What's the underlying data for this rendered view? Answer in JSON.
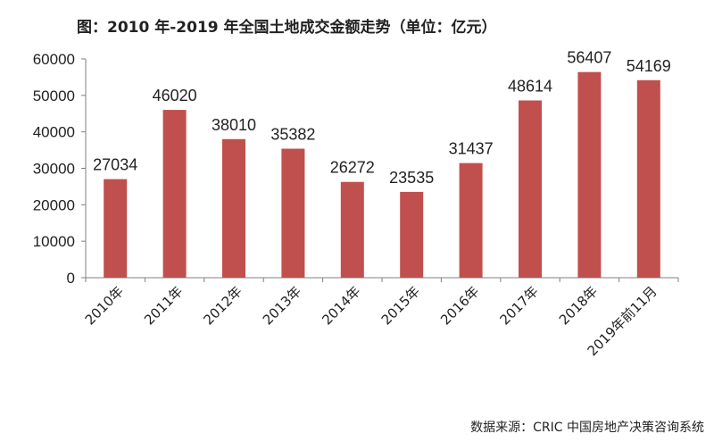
{
  "chart_data": {
    "type": "bar",
    "title": "图：2010 年-2019 年全国土地成交金额走势（单位：亿元）",
    "categories": [
      "2010年",
      "2011年",
      "2012年",
      "2013年",
      "2014年",
      "2015年",
      "2016年",
      "2017年",
      "2018年",
      "2019年前11月"
    ],
    "values": [
      27034,
      46020,
      38010,
      35382,
      26272,
      23535,
      31437,
      48614,
      56407,
      54169
    ],
    "ylim": [
      0,
      60000
    ],
    "yticks": [
      0,
      10000,
      20000,
      30000,
      40000,
      50000,
      60000
    ],
    "grid": false,
    "bar_color": "#c0504d"
  },
  "source_note": "数据来源：CRIC 中国房地产决策咨询系统"
}
